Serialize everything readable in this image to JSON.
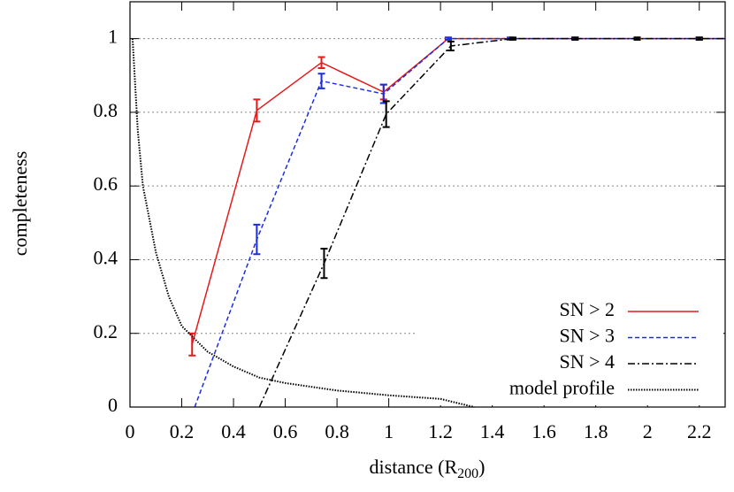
{
  "chart_data": {
    "type": "line",
    "x_label": [
      "distance (R",
      "200",
      ")"
    ],
    "y_label": "completeness",
    "xlim": [
      0,
      2.3
    ],
    "ylim": [
      0,
      1.1
    ],
    "xticks": [
      0,
      0.2,
      0.4,
      0.6,
      0.8,
      1,
      1.2,
      1.4,
      1.6,
      1.8,
      2,
      2.2
    ],
    "yticks": [
      0,
      0.2,
      0.4,
      0.6,
      0.8,
      1
    ],
    "grid": true,
    "legend": "bottom-right",
    "series": [
      {
        "name": "SN > 2",
        "color": "#e41a1c",
        "dash": "solid",
        "x": [
          0.24,
          0.49,
          0.74,
          0.98,
          1.23,
          1.47,
          1.72,
          1.96,
          2.2,
          2.3
        ],
        "values": [
          0.17,
          0.805,
          0.935,
          0.855,
          1,
          1,
          1,
          1,
          1,
          1
        ],
        "errors": [
          0.03,
          0.03,
          0.015,
          0.02,
          0.003,
          0.003,
          0.003,
          0.003,
          0.003,
          null
        ]
      },
      {
        "name": "SN > 3",
        "color": "#1a2ee0",
        "dash": "dashed",
        "x": [
          0.25,
          0.49,
          0.74,
          0.98,
          1.23,
          1.47,
          1.72,
          1.96,
          2.2,
          2.3
        ],
        "values": [
          0,
          0.455,
          0.885,
          0.85,
          1,
          1,
          1,
          1,
          1,
          1
        ],
        "errors": [
          null,
          0.04,
          0.02,
          0.025,
          0.003,
          0.003,
          0.003,
          0.003,
          0.003,
          null
        ]
      },
      {
        "name": "SN > 4",
        "color": "#000000",
        "dash": "dashdot",
        "x": [
          0.5,
          0.75,
          0.99,
          1.24,
          1.48,
          1.72,
          1.96,
          2.2,
          2.3
        ],
        "values": [
          0,
          0.39,
          0.795,
          0.98,
          1,
          1,
          1,
          1,
          1
        ],
        "errors": [
          null,
          0.04,
          0.035,
          0.012,
          0.003,
          0.003,
          0.003,
          0.003,
          null
        ]
      },
      {
        "name": "model profile",
        "color": "#000000",
        "dash": "dotted",
        "x": [
          0.01,
          0.03,
          0.05,
          0.1,
          0.15,
          0.2,
          0.3,
          0.4,
          0.5,
          0.6,
          0.8,
          1.0,
          1.2,
          1.3,
          1.33
        ],
        "values": [
          1.0,
          0.75,
          0.6,
          0.42,
          0.3,
          0.22,
          0.15,
          0.11,
          0.08,
          0.065,
          0.045,
          0.032,
          0.022,
          0.005,
          0
        ]
      }
    ]
  }
}
